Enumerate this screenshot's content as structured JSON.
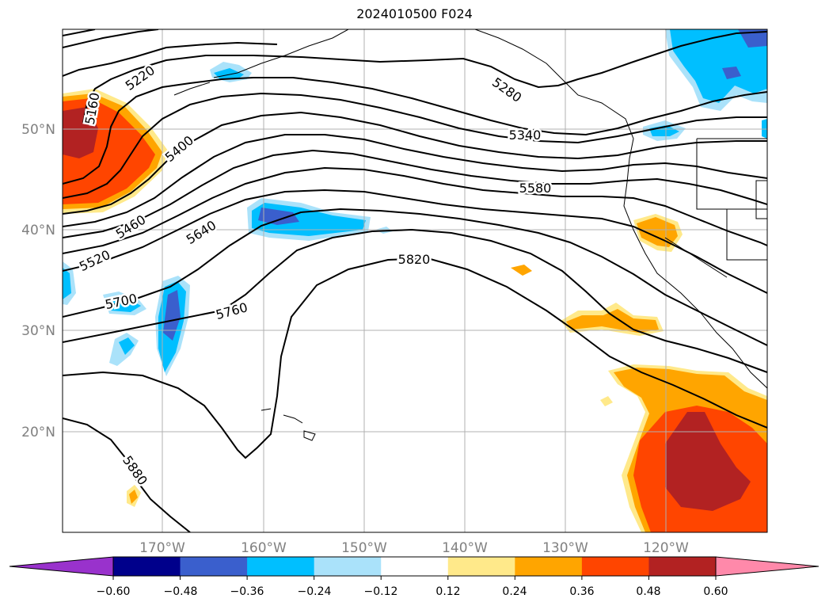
{
  "title": "2024010500 F024",
  "map": {
    "lat_labels": [
      "50°N",
      "40°N",
      "30°N",
      "20°N"
    ],
    "lon_labels": [
      "170°W",
      "160°W",
      "150°W",
      "140°W",
      "130°W",
      "120°W"
    ],
    "contour_labels": [
      "5160",
      "5220",
      "5280",
      "5340",
      "5400",
      "5460",
      "5520",
      "5580",
      "5640",
      "5700",
      "5760",
      "5820",
      "5880"
    ]
  },
  "colorbar": {
    "ticks": [
      "−0.60",
      "−0.48",
      "−0.36",
      "−0.24",
      "−0.12",
      "0.12",
      "0.24",
      "0.36",
      "0.48",
      "0.60"
    ],
    "colors": [
      "#9932cc",
      "#00008b",
      "#3a5fcd",
      "#00bfff",
      "#aae2fa",
      "#ffffff",
      "#ffe98a",
      "#ffa500",
      "#ff4500",
      "#b22222",
      "#ff89aa"
    ]
  }
}
